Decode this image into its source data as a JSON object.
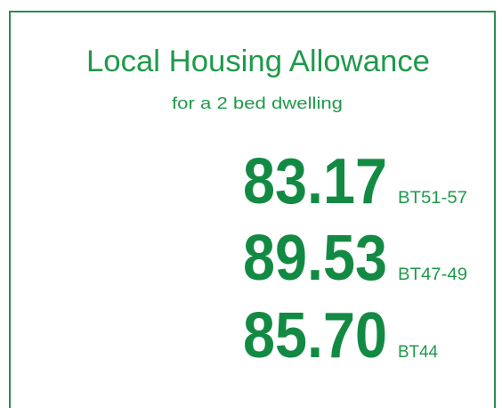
{
  "header": {
    "title": "Local Housing Allowance",
    "subtitle": "for a 2 bed dwelling"
  },
  "items": [
    {
      "value": "83.17",
      "label": "BT51-57"
    },
    {
      "value": "89.53",
      "label": "BT47-49"
    },
    {
      "value": "85.70",
      "label": "BT44"
    }
  ]
}
